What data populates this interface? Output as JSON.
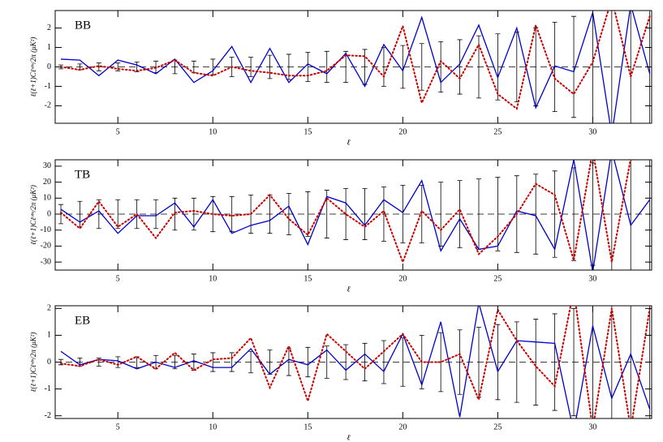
{
  "chart_data": [
    {
      "type": "line",
      "title": "BB",
      "xlabel": "ℓ",
      "ylabel": "ℓ(ℓ+1)Cℓᵒᵇˢ/2π  (μK²)",
      "x": [
        2,
        3,
        4,
        5,
        6,
        7,
        8,
        9,
        10,
        11,
        12,
        13,
        14,
        15,
        16,
        17,
        18,
        19,
        20,
        21,
        22,
        23,
        24,
        25,
        26,
        27,
        28,
        29,
        30,
        31,
        32,
        33
      ],
      "xlim": [
        1.7,
        33.1
      ],
      "xticks": [
        5,
        10,
        15,
        20,
        25,
        30
      ],
      "ylim": [
        -2.9,
        2.9
      ],
      "yticks": [
        -2,
        -1,
        0,
        1,
        2
      ],
      "zero_line": 0,
      "series": [
        {
          "color": "#0000cc",
          "style": "solid",
          "values": [
            0.4,
            0.35,
            -0.45,
            0.35,
            0.1,
            -0.35,
            0.4,
            -0.8,
            -0.2,
            1.05,
            -0.8,
            0.95,
            -0.8,
            0.15,
            -0.35,
            0.7,
            -1.0,
            1.15,
            -0.2,
            2.55,
            -0.8,
            0.15,
            2.15,
            -0.55,
            2.0,
            -2.1,
            0.05,
            -0.25,
            2.8,
            -3.5,
            3.2,
            -0.35
          ]
        },
        {
          "color": "#cc0000",
          "style": "dotted",
          "values": [
            0,
            -0.15,
            0.05,
            -0.1,
            -0.2,
            -0.05,
            0.35,
            -0.3,
            -0.45,
            0,
            -0.2,
            -0.3,
            -0.45,
            -0.45,
            -0.2,
            0.6,
            0.55,
            -0.5,
            2.1,
            -1.85,
            0.3,
            -0.6,
            1.15,
            -1.4,
            -2.15,
            2.15,
            -0.6,
            -1.4,
            0.25,
            3.5,
            -0.5,
            2.6
          ]
        }
      ],
      "error_color": "#000000",
      "errors": [
        0.1,
        0.15,
        0.2,
        0.2,
        0.25,
        0.3,
        0.35,
        0.3,
        0.4,
        0.5,
        0.5,
        0.6,
        0.65,
        0.75,
        0.8,
        0.8,
        0.9,
        1.0,
        1.1,
        1.2,
        1.3,
        1.4,
        1.6,
        1.7,
        1.8,
        2.0,
        2.3,
        2.6,
        3.0,
        3.5,
        4.0,
        4.5
      ]
    },
    {
      "type": "line",
      "title": "TB",
      "xlabel": "ℓ",
      "ylabel": "ℓ(ℓ+1)Cℓᵒᵇˢ/2π  (μK²)",
      "x": [
        2,
        3,
        4,
        5,
        6,
        7,
        8,
        9,
        10,
        11,
        12,
        13,
        14,
        15,
        16,
        17,
        18,
        19,
        20,
        21,
        22,
        23,
        24,
        25,
        26,
        27,
        28,
        29,
        30,
        31,
        32,
        33
      ],
      "xlim": [
        1.7,
        33.1
      ],
      "xticks": [
        5,
        10,
        15,
        20,
        25,
        30
      ],
      "ylim": [
        -35,
        34
      ],
      "yticks": [
        -30,
        -20,
        -10,
        0,
        10,
        20,
        30
      ],
      "zero_line": 0,
      "series": [
        {
          "color": "#0000cc",
          "style": "solid",
          "values": [
            3,
            -5,
            2,
            -12,
            -1,
            -1,
            7,
            -8,
            9,
            -12,
            -7,
            -4,
            5,
            -19,
            11,
            7,
            -7,
            9,
            1,
            21,
            -23,
            -3,
            -22,
            -20,
            2,
            -1,
            -22,
            34,
            -36,
            40,
            -7,
            9
          ]
        },
        {
          "color": "#cc0000",
          "style": "dotted",
          "values": [
            1,
            -9,
            8,
            -8,
            0,
            -15,
            1,
            2,
            0,
            -1,
            0,
            12,
            -3,
            -13,
            10,
            0,
            -8,
            2,
            -30,
            2,
            -10,
            3,
            -25,
            -14,
            0,
            19,
            12,
            -29,
            40,
            -30,
            35,
            40
          ]
        }
      ],
      "error_color": "#000000",
      "errors": [
        6,
        8,
        9,
        9,
        9,
        9,
        10,
        10,
        11,
        11,
        12,
        12,
        13,
        14,
        15,
        16,
        16,
        17,
        18,
        18,
        20,
        21,
        22,
        23,
        24,
        25,
        27,
        29,
        32,
        35,
        38,
        40
      ]
    },
    {
      "type": "line",
      "title": "EB",
      "xlabel": "ℓ",
      "ylabel": "ℓ(ℓ+1)Cℓᵒᵇˢ/2π  (μK²)",
      "x": [
        2,
        3,
        4,
        5,
        6,
        7,
        8,
        9,
        10,
        11,
        12,
        13,
        14,
        15,
        16,
        17,
        18,
        19,
        20,
        21,
        22,
        23,
        24,
        25,
        26,
        27,
        28,
        29,
        30,
        31,
        32,
        33
      ],
      "xlim": [
        1.7,
        33.1
      ],
      "xticks": [
        5,
        10,
        15,
        20,
        25,
        30
      ],
      "ylim": [
        -2.1,
        2.1
      ],
      "yticks": [
        -2,
        -1,
        0,
        1,
        2
      ],
      "zero_line": 0,
      "series": [
        {
          "color": "#0000cc",
          "style": "solid",
          "values": [
            0.4,
            -0.1,
            0.1,
            0.05,
            -0.25,
            0.0,
            -0.2,
            0.05,
            -0.2,
            -0.2,
            0.5,
            -0.45,
            0.1,
            -0.1,
            0.45,
            -0.3,
            0.3,
            -0.35,
            1.05,
            -0.85,
            1.5,
            -2.05,
            2.2,
            -0.35,
            0.8,
            0.75,
            0.7,
            -2.6,
            1.35,
            -1.35,
            0.3,
            -1.75
          ]
        },
        {
          "color": "#cc0000",
          "style": "dotted",
          "values": [
            -0.05,
            -0.15,
            0.1,
            -0.1,
            0.2,
            -0.25,
            0.35,
            -0.3,
            0.1,
            0.15,
            0.9,
            -0.95,
            0.6,
            -1.45,
            1.05,
            0.4,
            -0.25,
            0.4,
            1.05,
            0.0,
            0.0,
            0.3,
            -1.4,
            1.95,
            0.8,
            -0.15,
            -0.9,
            2.7,
            -2.5,
            2.0,
            -2.5,
            2.0
          ]
        }
      ],
      "error_color": "#000000",
      "errors": [
        0.1,
        0.15,
        0.15,
        0.2,
        0.2,
        0.25,
        0.25,
        0.3,
        0.35,
        0.35,
        0.4,
        0.45,
        0.5,
        0.55,
        0.6,
        0.65,
        0.7,
        0.8,
        0.9,
        1.0,
        1.1,
        1.2,
        1.3,
        1.4,
        1.5,
        1.6,
        1.8,
        2.0,
        2.2,
        2.4,
        2.6,
        2.8
      ]
    }
  ]
}
